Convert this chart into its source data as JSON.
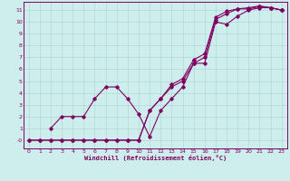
{
  "xlabel": "Windchill (Refroidissement éolien,°C)",
  "bg_color": "#cdeeed",
  "grid_color": "#b0d8d8",
  "line_color": "#800060",
  "xlim": [
    -0.5,
    23.5
  ],
  "ylim": [
    -0.7,
    11.7
  ],
  "xticks": [
    0,
    1,
    2,
    3,
    4,
    5,
    6,
    7,
    8,
    9,
    10,
    11,
    12,
    13,
    14,
    15,
    16,
    17,
    18,
    19,
    20,
    21,
    22,
    23
  ],
  "yticks": [
    0,
    1,
    2,
    3,
    4,
    5,
    6,
    7,
    8,
    9,
    10,
    11
  ],
  "ytick_labels": [
    "-0",
    "1",
    "2",
    "3",
    "4",
    "5",
    "6",
    "7",
    "8",
    "9",
    "10",
    "11"
  ],
  "line1_x": [
    0,
    1,
    2,
    3,
    4,
    5,
    6,
    7,
    8,
    9,
    10,
    11,
    12,
    13,
    14,
    15,
    16,
    17,
    18,
    19,
    20,
    21,
    22,
    23
  ],
  "line1_y": [
    0,
    0,
    0,
    0,
    0,
    0,
    0,
    0,
    0,
    0,
    0,
    2.5,
    3.5,
    4.5,
    5.0,
    6.5,
    7.0,
    10.2,
    10.7,
    11.1,
    11.1,
    11.3,
    11.2,
    11.0
  ],
  "line2_x": [
    2,
    3,
    4,
    5,
    6,
    7,
    8,
    9,
    10,
    11,
    12,
    13,
    14,
    15,
    16,
    17,
    18,
    19,
    20,
    21,
    22,
    23
  ],
  "line2_y": [
    1.0,
    2.0,
    2.0,
    2.0,
    3.5,
    4.5,
    4.5,
    3.5,
    2.2,
    0.3,
    2.5,
    3.5,
    4.5,
    6.5,
    6.5,
    10.0,
    9.8,
    10.5,
    11.0,
    11.2,
    11.2,
    11.0
  ],
  "line3_x": [
    0,
    1,
    2,
    3,
    4,
    5,
    6,
    7,
    8,
    9,
    10,
    11,
    12,
    13,
    14,
    15,
    16,
    17,
    18,
    19,
    20,
    21,
    22,
    23
  ],
  "line3_y": [
    0,
    0,
    0,
    0,
    0,
    0,
    0,
    0,
    0,
    0,
    0,
    2.5,
    3.5,
    4.7,
    5.2,
    6.8,
    7.3,
    10.4,
    10.9,
    11.1,
    11.2,
    11.35,
    11.2,
    11.0
  ]
}
